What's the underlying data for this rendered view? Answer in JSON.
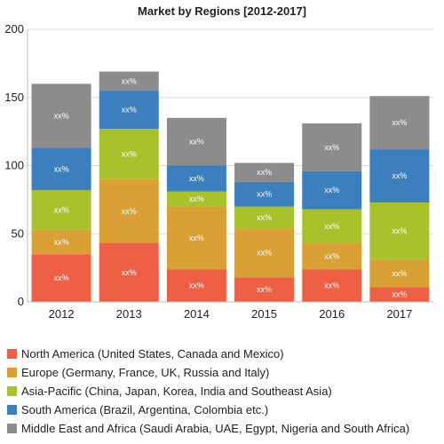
{
  "chart_data": {
    "type": "bar",
    "stacked": true,
    "title": "Market by Regions [2012-2017]",
    "xlabel": "",
    "ylabel": "",
    "ylim": [
      0,
      200
    ],
    "yticks": [
      0,
      50,
      100,
      150,
      200
    ],
    "grid": "horizontal",
    "legend_position": "bottom",
    "categories": [
      "2012",
      "2013",
      "2014",
      "2015",
      "2016",
      "2017"
    ],
    "bar_label": "xx%",
    "series": [
      {
        "name": "North America (United States, Canada and Mexico)",
        "color": "#ee6045",
        "values": [
          35,
          43,
          24,
          18,
          24,
          11
        ]
      },
      {
        "name": "Europe (Germany, France, UK, Russia and Italy)",
        "color": "#d9a035",
        "values": [
          18,
          47,
          46,
          36,
          19,
          20
        ]
      },
      {
        "name": "Asia-Pacific (China, Japan, Korea, India and Southeast Asia)",
        "color": "#a9c22c",
        "values": [
          29,
          37,
          11,
          16,
          25,
          42
        ]
      },
      {
        "name": "South America (Brazil, Argentina, Colombia etc.)",
        "color": "#3b7fbf",
        "values": [
          31,
          28,
          19,
          18,
          28,
          39
        ]
      },
      {
        "name": "Middle East and Africa (Saudi Arabia, UAE, Egypt, Nigeria and South Africa)",
        "color": "#8c8c8c",
        "values": [
          47,
          14,
          35,
          14,
          35,
          39
        ]
      }
    ]
  }
}
